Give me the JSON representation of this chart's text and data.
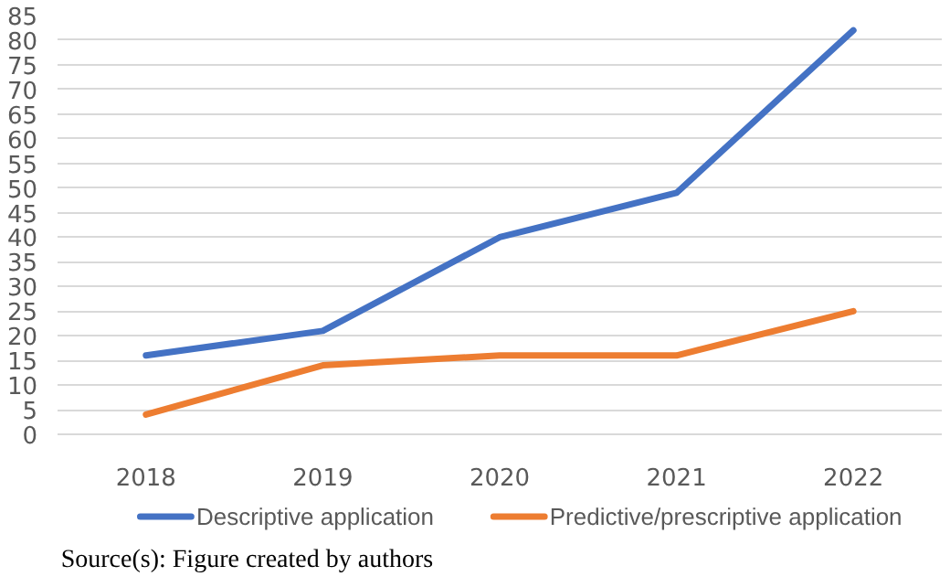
{
  "chart_data": {
    "type": "line",
    "categories": [
      "2018",
      "2019",
      "2020",
      "2021",
      "2022"
    ],
    "series": [
      {
        "name": "Descriptive application",
        "color": "#4472c4",
        "values": [
          16,
          21,
          40,
          49,
          82
        ]
      },
      {
        "name": "Predictive/prescriptive application",
        "color": "#ed7d31",
        "values": [
          4,
          14,
          16,
          16,
          25
        ]
      }
    ],
    "ylim": [
      0,
      85
    ],
    "yticks": [
      0,
      5,
      10,
      15,
      20,
      25,
      30,
      35,
      40,
      45,
      50,
      55,
      60,
      65,
      70,
      75,
      80,
      85
    ],
    "grid": "y",
    "legend": "bottom",
    "marker": "none",
    "line_style": "solid",
    "annotations": [
      "Source(s): Figure created by authors"
    ]
  }
}
